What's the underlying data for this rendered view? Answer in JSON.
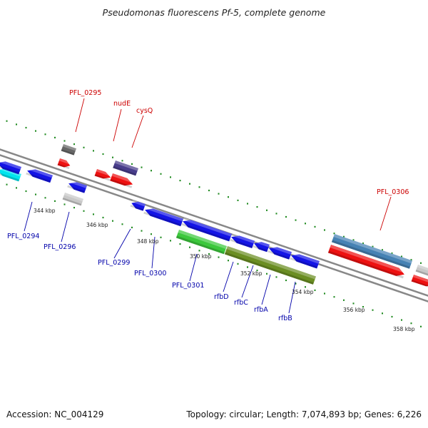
{
  "title": "Pseudomonas fluorescens Pf-5, complete genome",
  "footer": {
    "accession": "Accession: NC_004129",
    "summary": "Topology: circular; Length: 7,074,893 bp; Genes: 6,226"
  },
  "colors": {
    "backbone": "#888888",
    "tick": "#228B22",
    "label_forward": "#cc0000",
    "label_reverse": "#0000aa"
  },
  "ticks": [
    "344 kbp",
    "346 kbp",
    "348 kbp",
    "350 kbp",
    "352 kbp",
    "354 kbp",
    "356 kbp",
    "358 kbp"
  ],
  "labels": [
    {
      "text": "PFL_0295",
      "strand": "forward"
    },
    {
      "text": "nudE",
      "strand": "forward"
    },
    {
      "text": "cysQ",
      "strand": "forward"
    },
    {
      "text": "PFL_0306",
      "strand": "forward"
    },
    {
      "text": "PFL_0294",
      "strand": "reverse"
    },
    {
      "text": "PFL_0296",
      "strand": "reverse"
    },
    {
      "text": "PFL_0299",
      "strand": "reverse"
    },
    {
      "text": "PFL_0300",
      "strand": "reverse"
    },
    {
      "text": "PFL_0301",
      "strand": "reverse"
    },
    {
      "text": "rfbD",
      "strand": "reverse"
    },
    {
      "text": "rfbC",
      "strand": "reverse"
    },
    {
      "text": "rfbA",
      "strand": "reverse"
    },
    {
      "text": "rfbB",
      "strand": "reverse"
    }
  ]
}
